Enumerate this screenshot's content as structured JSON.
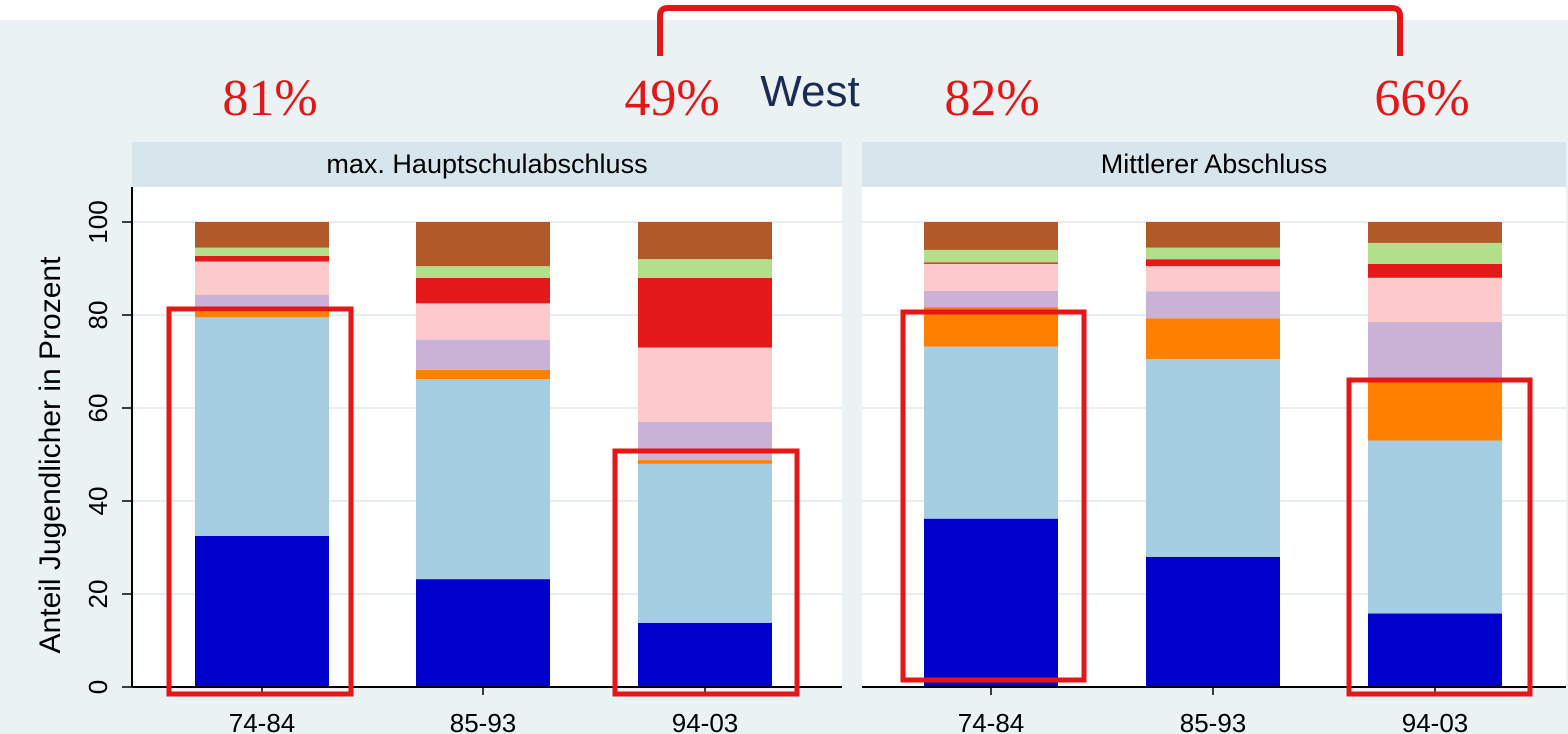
{
  "chart_data": {
    "type": "bar",
    "stacked": true,
    "title": "West",
    "ylabel": "Anteil Jugendlicher in Prozent",
    "ylim": [
      0,
      100
    ],
    "yticks": [
      0,
      20,
      40,
      60,
      80,
      100
    ],
    "grid": true,
    "categories": [
      "74-84",
      "85-93",
      "94-03"
    ],
    "segment_colors": [
      "#0000cc",
      "#a6cee3",
      "#ff7f00",
      "#cab2d6",
      "#fccaca",
      "#e31a1c",
      "#b2df8a",
      "#b15928"
    ],
    "panels": [
      {
        "title": "max. Hauptschulabschluss",
        "bars": [
          [
            32.5,
            47.0,
            1.2,
            3.6,
            7.2,
            1.2,
            1.8,
            5.5
          ],
          [
            23.2,
            43.0,
            2.0,
            6.5,
            7.8,
            5.5,
            2.5,
            9.5
          ],
          [
            13.8,
            34.2,
            0.8,
            8.2,
            16.0,
            15.0,
            4.0,
            8.0
          ]
        ]
      },
      {
        "title": "Mittlerer Abschluss",
        "bars": [
          [
            36.2,
            37.0,
            8.5,
            3.5,
            5.8,
            0.3,
            2.7,
            6.0
          ],
          [
            28.0,
            42.5,
            8.8,
            5.8,
            5.4,
            1.5,
            2.5,
            5.5
          ],
          [
            15.8,
            37.2,
            13.0,
            12.5,
            9.5,
            3.0,
            4.5,
            4.5
          ]
        ]
      }
    ],
    "annotations": [
      "81%",
      "49%",
      "82%",
      "66%"
    ]
  }
}
